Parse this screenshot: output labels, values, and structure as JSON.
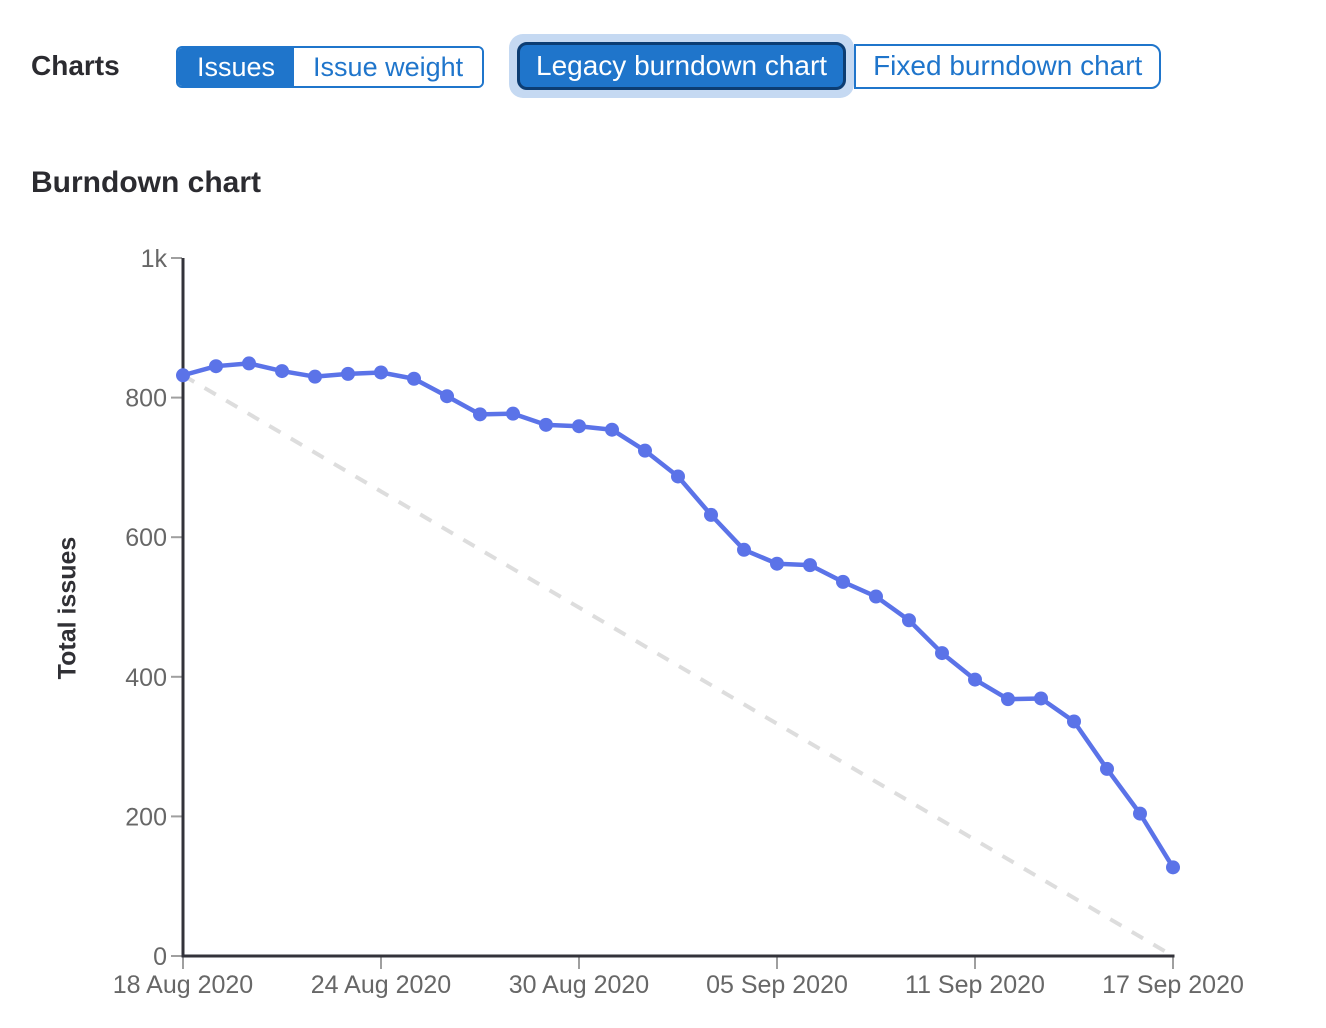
{
  "header": {
    "charts_label": "Charts"
  },
  "toggles": {
    "issue_type": {
      "options": [
        {
          "label": "Issues",
          "selected": true
        },
        {
          "label": "Issue weight",
          "selected": false
        }
      ]
    },
    "chart_type": {
      "options": [
        {
          "label": "Legacy burndown chart",
          "selected": true,
          "focused": true
        },
        {
          "label": "Fixed burndown chart",
          "selected": false
        }
      ]
    }
  },
  "section": {
    "title": "Burndown chart"
  },
  "colors": {
    "accent_blue": "#1f75cb",
    "selected_border": "#0c3d73",
    "focus_halo": "#c5d9f2",
    "series_blue": "#5b73e8",
    "guideline_gray": "#dddddd",
    "axis_dark": "#33333a",
    "tick_gray": "#9f9f9f",
    "tick_label_gray": "#676767"
  },
  "chart_data": {
    "type": "line",
    "title": "Burndown chart",
    "xlabel": "",
    "ylabel": "Total issues",
    "ylim": [
      0,
      1000
    ],
    "grid": false,
    "legend": "none",
    "x_range_days": [
      0,
      30
    ],
    "x_tick_days": [
      0,
      6,
      12,
      18,
      24,
      30
    ],
    "x_tick_labels": [
      "18 Aug 2020",
      "24 Aug 2020",
      "30 Aug 2020",
      "05 Sep 2020",
      "11 Sep 2020",
      "17 Sep 2020"
    ],
    "y_tick_values": [
      0,
      200,
      400,
      600,
      800,
      1000
    ],
    "y_tick_labels": [
      "0",
      "200",
      "400",
      "600",
      "800",
      "1k"
    ],
    "series": [
      {
        "name": "total-issues-remaining",
        "color": "#5b73e8",
        "values": [
          832,
          845,
          849,
          838,
          830,
          834,
          836,
          827,
          802,
          776,
          777,
          761,
          759,
          754,
          724,
          687,
          632,
          582,
          562,
          560,
          536,
          515,
          481,
          434,
          396,
          368,
          369,
          336,
          268,
          204,
          127
        ]
      }
    ],
    "guideline": {
      "name": "ideal-burndown",
      "style": "dashed",
      "color": "#dddddd",
      "start_value": 832,
      "end_value": 0
    }
  }
}
